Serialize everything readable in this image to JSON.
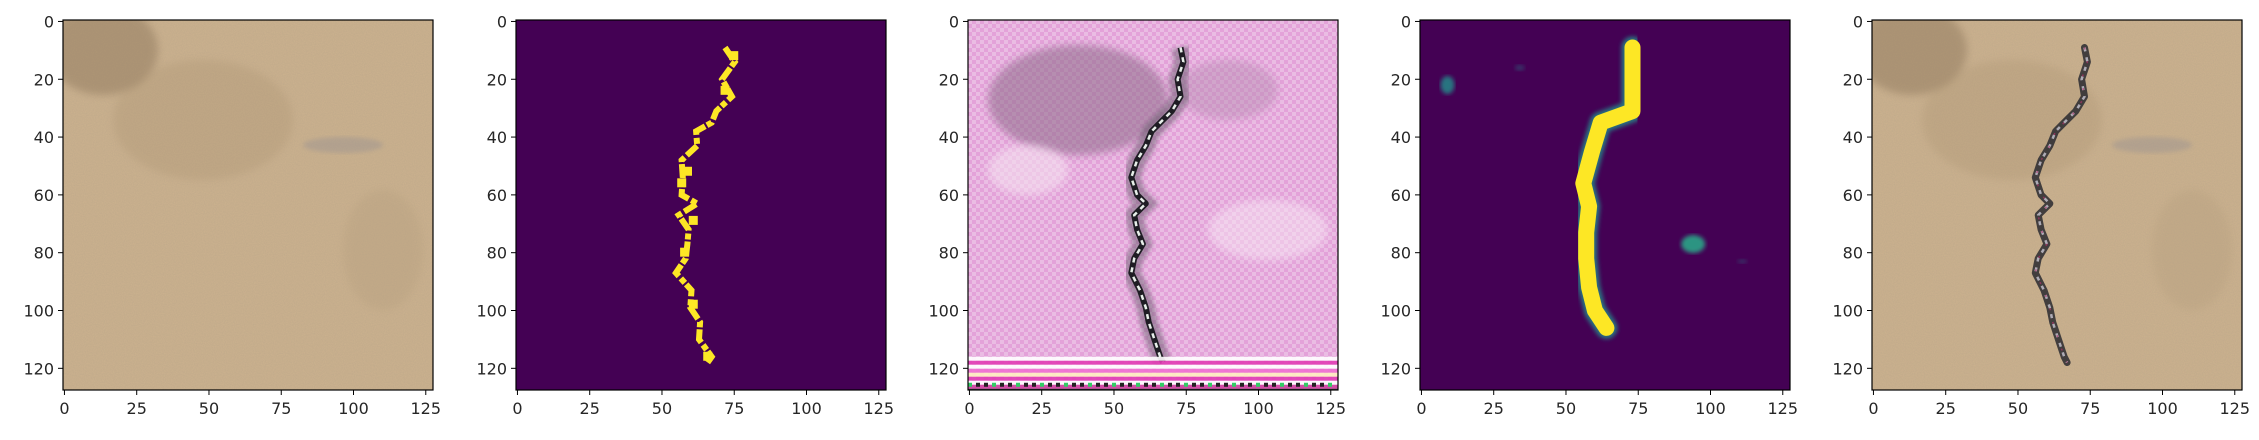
{
  "figure": {
    "axes": {
      "x_ticks": [
        "0",
        "25",
        "50",
        "75",
        "100",
        "125"
      ],
      "y_ticks": [
        "0",
        "20",
        "40",
        "60",
        "80",
        "100",
        "120"
      ],
      "x_values": [
        0,
        25,
        50,
        75,
        100,
        125
      ],
      "y_values": [
        0,
        20,
        40,
        60,
        80,
        100,
        120
      ],
      "xlim": [
        -0.5,
        127.5
      ],
      "ylim": [
        127.5,
        -0.5
      ]
    },
    "panels": [
      {
        "kind": "sand-texture",
        "description_name": "input-image"
      },
      {
        "kind": "mask-yellow-on-purple",
        "description_name": "ground-truth-mask"
      },
      {
        "kind": "pink-generated-crack",
        "description_name": "generated-image"
      },
      {
        "kind": "mask-smooth-on-purple",
        "description_name": "predicted-mask"
      },
      {
        "kind": "sand-with-crack",
        "description_name": "composited-image"
      }
    ],
    "colors": {
      "mask_background": "#440154",
      "mask_foreground": "#fde725",
      "mask_edge": "#21918c",
      "sand_base": "#cdb28e",
      "pink_base": "#e6b2dc"
    }
  }
}
